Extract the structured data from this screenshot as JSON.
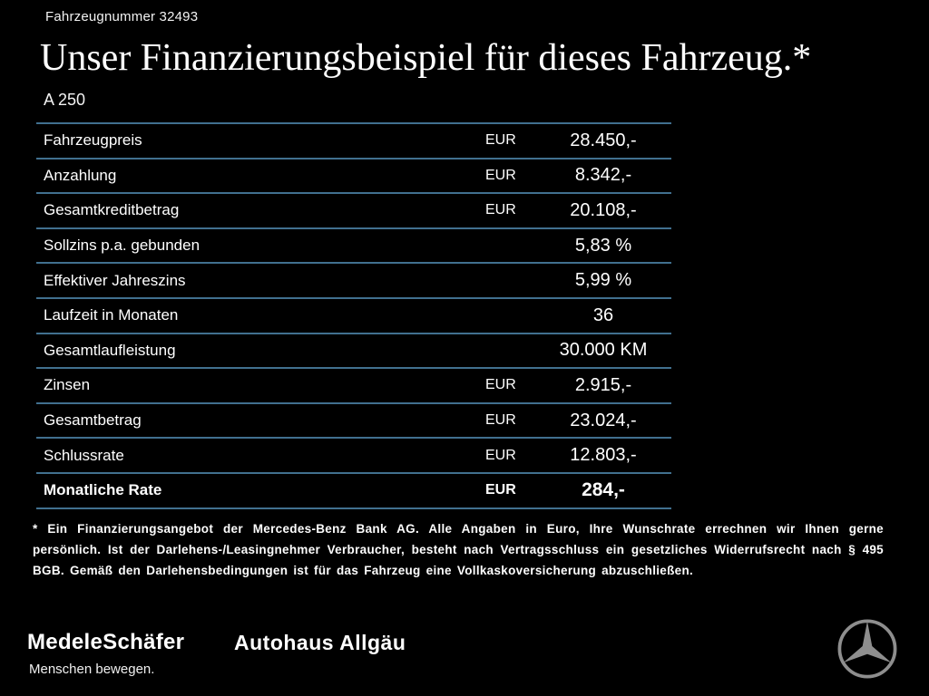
{
  "header": {
    "vehicle_number": "Fahrzeugnummer 32493",
    "title": "Unser Finanzierungsbeispiel für dieses Fahrzeug.*",
    "model": "A 250"
  },
  "table": {
    "rows": [
      {
        "label": "Fahrzeugpreis",
        "currency": "EUR",
        "value": "28.450,-",
        "bold": false
      },
      {
        "label": "Anzahlung",
        "currency": "EUR",
        "value": "8.342,-",
        "bold": false
      },
      {
        "label": "Gesamtkreditbetrag",
        "currency": "EUR",
        "value": "20.108,-",
        "bold": false
      },
      {
        "label": "Sollzins p.a. gebunden",
        "currency": "",
        "value": "5,83 %",
        "bold": false
      },
      {
        "label": "Effektiver Jahreszins",
        "currency": "",
        "value": "5,99 %",
        "bold": false
      },
      {
        "label": "Laufzeit in Monaten",
        "currency": "",
        "value": "36",
        "bold": false
      },
      {
        "label": "Gesamtlaufleistung",
        "currency": "",
        "value": "30.000 KM",
        "bold": false
      },
      {
        "label": "Zinsen",
        "currency": "EUR",
        "value": "2.915,-",
        "bold": false
      },
      {
        "label": "Gesamtbetrag",
        "currency": "EUR",
        "value": "23.024,-",
        "bold": false
      },
      {
        "label": "Schlussrate",
        "currency": "EUR",
        "value": "12.803,-",
        "bold": false
      },
      {
        "label": "Monatliche Rate",
        "currency": "EUR",
        "value": "284,-",
        "bold": true
      }
    ]
  },
  "footnote": "* Ein Finanzierungsangebot der Mercedes-Benz Bank AG. Alle Angaben in Euro, Ihre Wunschrate errechnen wir Ihnen gerne persönlich. Ist der Darlehens-/Leasingnehmer Verbraucher, besteht nach Vertragsschluss ein gesetzliches Widerrufsrecht nach § 495 BGB. Gemäß den Darlehensbedingungen ist für das Fahrzeug eine Vollkaskoversicherung abzuschließen.",
  "footer": {
    "dealer1_name": "MedeleSchäfer",
    "dealer1_tagline": "Menschen bewegen.",
    "dealer2_name": "Autohaus Allgäu"
  },
  "colors": {
    "table_line": "#41708f",
    "background": "#000000",
    "text": "#ffffff",
    "logo_gray": "#8e8e8e"
  }
}
